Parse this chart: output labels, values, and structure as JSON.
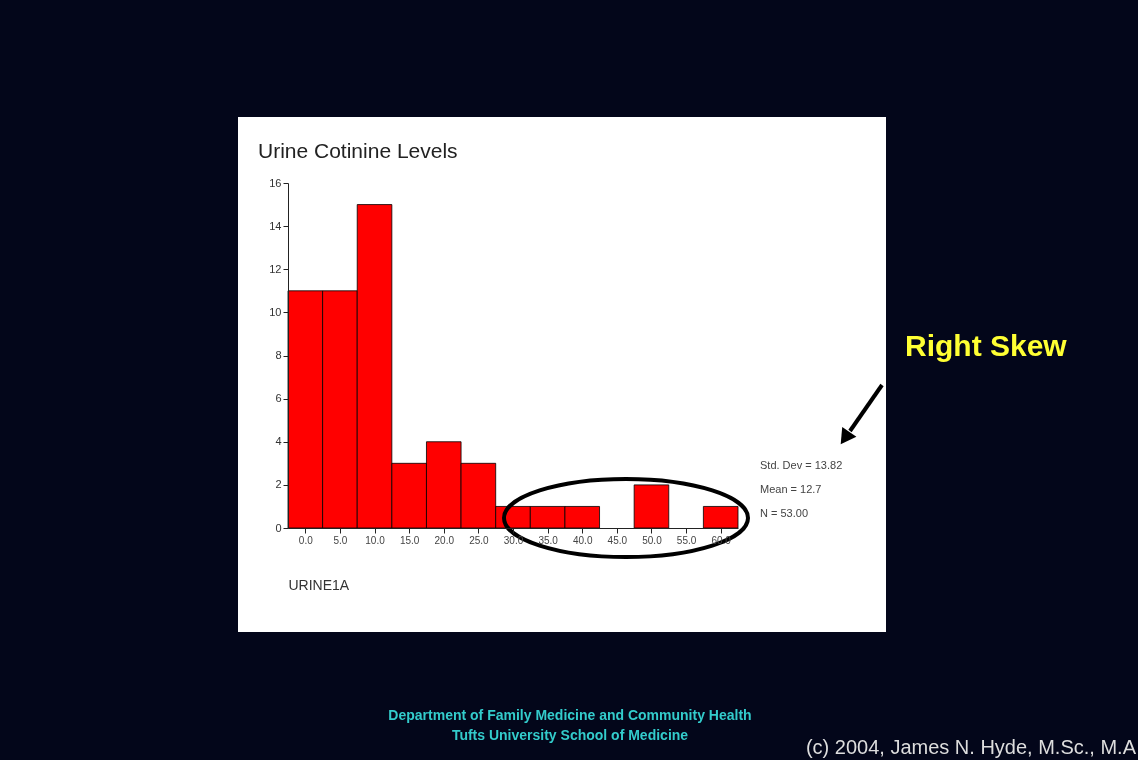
{
  "chart_data": {
    "type": "histogram",
    "title": "Urine Cotinine Levels",
    "xlabel": "URINE1A",
    "bins": [
      -2.5,
      2.5,
      7.5,
      12.5,
      17.5,
      22.5,
      27.5,
      32.5,
      37.5,
      42.5,
      47.5,
      52.5,
      57.5,
      62.5
    ],
    "values": [
      11,
      11,
      15,
      3,
      4,
      3,
      1,
      1,
      1,
      0,
      2,
      0,
      1
    ],
    "color": "#ff0000",
    "xlim": [
      -2.5,
      62.5
    ],
    "xticks": [
      {
        "value": 0,
        "label": "0.0"
      },
      {
        "value": 5,
        "label": "5.0"
      },
      {
        "value": 10,
        "label": "10.0"
      },
      {
        "value": 15,
        "label": "15.0"
      },
      {
        "value": 20,
        "label": "20.0"
      },
      {
        "value": 25,
        "label": "25.0"
      },
      {
        "value": 30,
        "label": "30.0"
      },
      {
        "value": 35,
        "label": "35.0"
      },
      {
        "value": 40,
        "label": "40.0"
      },
      {
        "value": 45,
        "label": "45.0"
      },
      {
        "value": 50,
        "label": "50.0"
      },
      {
        "value": 55,
        "label": "55.0"
      },
      {
        "value": 60,
        "label": "60.0"
      }
    ],
    "ylim": [
      0,
      16
    ],
    "yticks": [
      0,
      2,
      4,
      6,
      8,
      10,
      12,
      14,
      16
    ],
    "grid": false,
    "annotations": [
      "Std. Dev = 13.82",
      "Mean = 12.7",
      "N = 53.00",
      "Right Skew",
      "Department of Family Medicine and Community Health",
      "Tufts University School of Medicine",
      "(c) 2004, James N. Hyde, M.Sc., M.A"
    ]
  }
}
